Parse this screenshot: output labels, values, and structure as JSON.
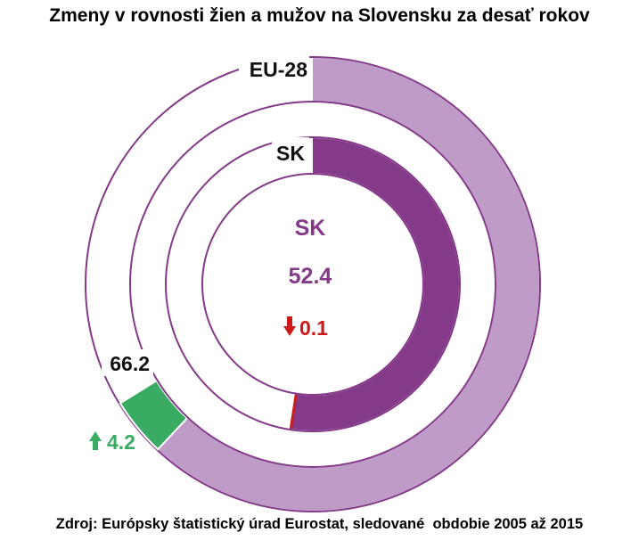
{
  "title": "Zmeny v rovnosti žien a mužov na Slovensku za desať rokov",
  "source": "Zdroj: Európsky štatistický úrad Eurostat, sledované  obdobie 2005 až 2015",
  "colors": {
    "eu_fill": "#bf9bc8",
    "sk_fill": "#843a88",
    "outline": "#843a88",
    "increase": "#3aab63",
    "decrease": "#cc1a1a",
    "center_text": "#843a88"
  },
  "chart_data": {
    "type": "donut",
    "max": 100,
    "series": [
      {
        "name": "EU-28",
        "value": 66.2,
        "change": 4.2,
        "change_direction": "up",
        "change_label": "4.2",
        "value_label": "66.2"
      },
      {
        "name": "SK",
        "value": 52.4,
        "change": -0.1,
        "change_direction": "down",
        "change_label": "0.1",
        "value_label": "52.4"
      }
    ],
    "center": {
      "label": "SK",
      "value": "52.4",
      "change_label": "0.1"
    }
  }
}
